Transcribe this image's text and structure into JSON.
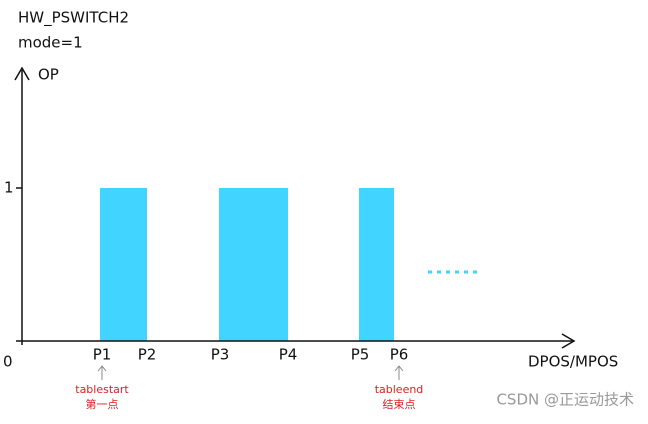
{
  "header": {
    "title": "HW_PSWITCH2",
    "subtitle": "mode=1"
  },
  "axes": {
    "y_label": "OP",
    "y_tick": "1",
    "origin": "0",
    "x_label": "DPOS/MPOS"
  },
  "points": [
    "P1",
    "P2",
    "P3",
    "P4",
    "P5",
    "P6"
  ],
  "notes": [
    {
      "name": "tablestart",
      "desc": "第一点"
    },
    {
      "name": "tableend",
      "desc": "结束点"
    }
  ],
  "watermark": "CSDN @正运动技术"
}
